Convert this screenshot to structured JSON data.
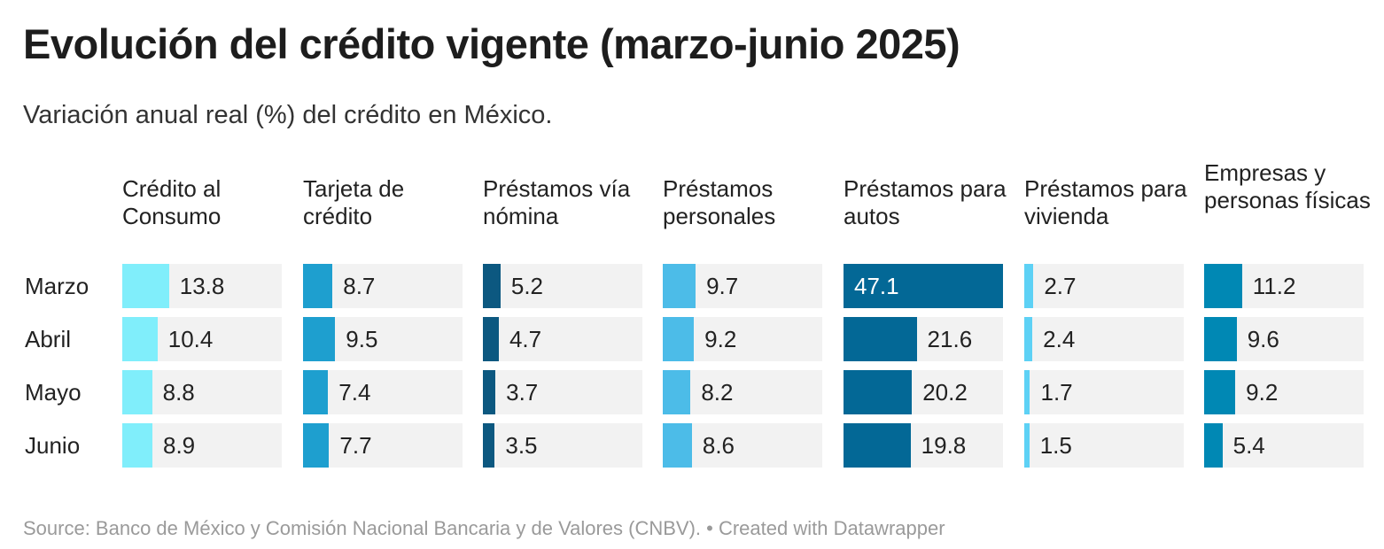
{
  "title": "Evolución del crédito vigente (marzo-junio 2025)",
  "subtitle": "Variación anual real (%) del crédito en México.",
  "source": "Source: Banco de México y Comisión Nacional Bancaria y de Valores (CNBV). • Created with Datawrapper",
  "chart_data": {
    "type": "table",
    "title": "Evolución del crédito vigente (marzo-junio 2025)",
    "rows": [
      "Marzo",
      "Abril",
      "Mayo",
      "Junio"
    ],
    "bar_scale": [
      0,
      47.1
    ],
    "series": [
      {
        "name": "Crédito al Consumo",
        "color": "#80eefb",
        "values": [
          13.8,
          10.4,
          8.8,
          8.9
        ]
      },
      {
        "name": "Tarjeta de crédito",
        "color": "#1e9fcf",
        "values": [
          8.7,
          9.5,
          7.4,
          7.7
        ]
      },
      {
        "name": "Préstamos vía nómina",
        "color": "#0c5880",
        "values": [
          5.2,
          4.7,
          3.7,
          3.5
        ]
      },
      {
        "name": "Préstamos personales",
        "color": "#4cbce8",
        "values": [
          9.7,
          9.2,
          8.2,
          8.6
        ]
      },
      {
        "name": "Préstamos para autos",
        "color": "#036896",
        "values": [
          47.1,
          21.6,
          20.2,
          19.8
        ]
      },
      {
        "name": "Préstamos para vivienda",
        "color": "#5dd1f5",
        "values": [
          2.7,
          2.4,
          1.7,
          1.5
        ]
      },
      {
        "name": "Empresas y personas físicas",
        "color": "#0088b4",
        "values": [
          11.2,
          9.6,
          9.2,
          5.4
        ]
      }
    ]
  }
}
